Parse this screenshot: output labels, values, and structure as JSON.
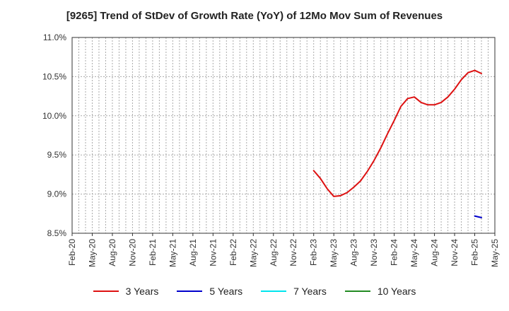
{
  "chart_data": {
    "type": "line",
    "title": "[9265]  Trend of StDev of Growth Rate (YoY) of 12Mo Mov Sum of Revenues",
    "xlabel": "",
    "ylabel": "",
    "ylim": [
      8.5,
      11.0
    ],
    "yticks": [
      8.5,
      9.0,
      9.5,
      10.0,
      10.5,
      11.0
    ],
    "ytick_labels": [
      "8.5%",
      "9.0%",
      "9.5%",
      "10.0%",
      "10.5%",
      "11.0%"
    ],
    "xlim": [
      0,
      63
    ],
    "xticks": [
      0,
      3,
      6,
      9,
      12,
      15,
      18,
      21,
      24,
      27,
      30,
      33,
      36,
      39,
      42,
      45,
      48,
      51,
      54,
      57,
      60,
      63
    ],
    "xtick_labels": [
      "Feb-20",
      "May-20",
      "Aug-20",
      "Nov-20",
      "Feb-21",
      "May-21",
      "Aug-21",
      "Nov-21",
      "Feb-22",
      "May-22",
      "Aug-22",
      "Nov-22",
      "Feb-23",
      "May-23",
      "Aug-23",
      "Nov-23",
      "Feb-24",
      "May-24",
      "Aug-24",
      "Nov-24",
      "Feb-25",
      "May-25"
    ],
    "grid": true,
    "legend_position": "bottom",
    "series": [
      {
        "name": "3 Years",
        "color": "#dd1111",
        "x": [
          36,
          37,
          38,
          39,
          40,
          41,
          42,
          43,
          44,
          45,
          46,
          47,
          48,
          49,
          50,
          51,
          52,
          53,
          54,
          55,
          56,
          57,
          58,
          59,
          60,
          61
        ],
        "values": [
          9.3,
          9.2,
          9.07,
          8.97,
          8.98,
          9.02,
          9.09,
          9.17,
          9.29,
          9.43,
          9.59,
          9.77,
          9.94,
          10.12,
          10.22,
          10.24,
          10.17,
          10.14,
          10.14,
          10.17,
          10.24,
          10.34,
          10.46,
          10.55,
          10.58,
          10.54
        ]
      },
      {
        "name": "5 Years",
        "color": "#0000cc",
        "x": [
          60,
          61
        ],
        "values": [
          8.72,
          8.7
        ]
      },
      {
        "name": "7 Years",
        "color": "#00e5ee",
        "x": [],
        "values": []
      },
      {
        "name": "10 Years",
        "color": "#228b22",
        "x": [],
        "values": []
      }
    ]
  }
}
